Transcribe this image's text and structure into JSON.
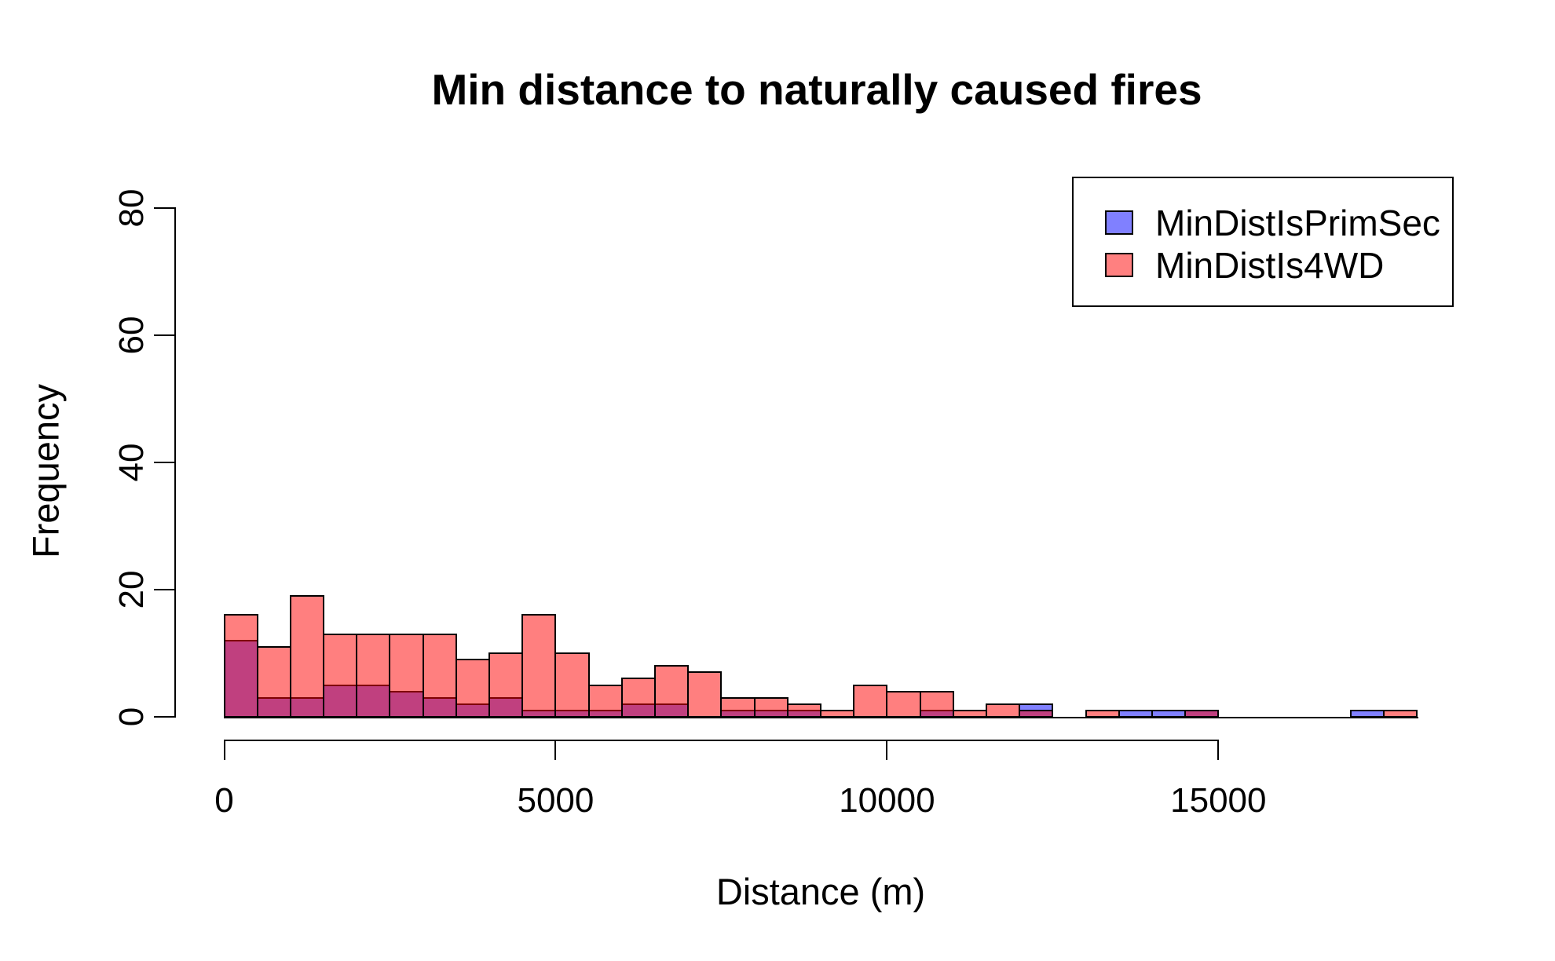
{
  "title": "Min distance to naturally caused fires",
  "xlabel": "Distance (m)",
  "ylabel": "Frequency",
  "legend": {
    "position": "top-right",
    "items": [
      {
        "label": "MinDistIsPrimSec",
        "swatch_color": "#8080FF"
      },
      {
        "label": "MinDistIs4WD",
        "swatch_color": "#FF8080"
      }
    ]
  },
  "colors": {
    "blue_fill": "#8080FF",
    "red_fill": "rgba(255,0,0,0.5)",
    "red_flat": "#FF8080",
    "overlap_flat": "#BF407F",
    "bar_border": "#000000",
    "axis": "#000000",
    "background": "#FFFFFF"
  },
  "chart_data": {
    "type": "bar",
    "subtype": "overlaid-histogram",
    "title": "Min distance to naturally caused fires",
    "xlabel": "Distance (m)",
    "ylabel": "Frequency",
    "bin_width": 500,
    "bin_start": 0,
    "xlim": [
      0,
      18000
    ],
    "ylim": [
      0,
      80
    ],
    "x_ticks": [
      0,
      5000,
      10000,
      15000
    ],
    "y_ticks": [
      0,
      20,
      40,
      60,
      80
    ],
    "grid": false,
    "legend_position": "top-right",
    "series": [
      {
        "name": "MinDistIsPrimSec",
        "draw_order": 1,
        "values": [
          12,
          3,
          3,
          5,
          5,
          4,
          3,
          2,
          3,
          1,
          1,
          1,
          2,
          2,
          0,
          1,
          1,
          1,
          0,
          0,
          0,
          1,
          0,
          0,
          2,
          0,
          0,
          1,
          1,
          1,
          0,
          0,
          0,
          0,
          1,
          0
        ]
      },
      {
        "name": "MinDistIs4WD",
        "draw_order": 2,
        "values": [
          16,
          11,
          19,
          13,
          13,
          13,
          13,
          9,
          10,
          16,
          10,
          5,
          6,
          8,
          7,
          3,
          3,
          2,
          1,
          5,
          4,
          4,
          1,
          2,
          1,
          0,
          1,
          0,
          0,
          1,
          0,
          0,
          0,
          0,
          0,
          1
        ]
      }
    ]
  }
}
